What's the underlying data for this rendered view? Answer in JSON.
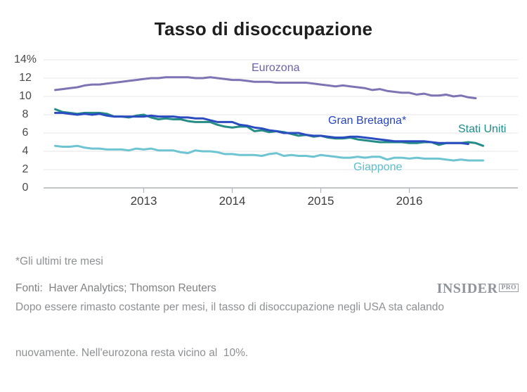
{
  "title": "Tasso di disoccupazione",
  "chart_data": {
    "type": "line",
    "title": "Tasso di disoccupazione",
    "x_unit": "month",
    "x_start": "2012-01",
    "grid": true,
    "legend": "inline-labels",
    "ylim": [
      0,
      14
    ],
    "y_ticks": [
      {
        "label": "14%",
        "value": 14
      },
      {
        "label": "12",
        "value": 12
      },
      {
        "label": "10",
        "value": 10
      },
      {
        "label": "8",
        "value": 8
      },
      {
        "label": "6",
        "value": 6
      },
      {
        "label": "4",
        "value": 4
      },
      {
        "label": "2",
        "value": 2
      },
      {
        "label": "0",
        "value": 0
      }
    ],
    "x_ticks": [
      {
        "label": "2013",
        "month_index": 12
      },
      {
        "label": "2014",
        "month_index": 24
      },
      {
        "label": "2015",
        "month_index": 36
      },
      {
        "label": "2016",
        "month_index": 48
      }
    ],
    "series": [
      {
        "name": "Eurozona",
        "color": "#7e73b3",
        "label_color": "#6c61aa",
        "values": [
          10.7,
          10.8,
          10.9,
          11.0,
          11.2,
          11.3,
          11.3,
          11.4,
          11.5,
          11.6,
          11.7,
          11.8,
          11.9,
          12.0,
          12.0,
          12.1,
          12.1,
          12.1,
          12.1,
          12.0,
          12.0,
          12.1,
          12.0,
          11.9,
          11.8,
          11.8,
          11.7,
          11.6,
          11.6,
          11.6,
          11.5,
          11.5,
          11.5,
          11.5,
          11.5,
          11.4,
          11.3,
          11.2,
          11.1,
          11.2,
          11.1,
          11.0,
          10.9,
          10.7,
          10.8,
          10.6,
          10.5,
          10.4,
          10.4,
          10.2,
          10.3,
          10.1,
          10.1,
          10.2,
          10.0,
          10.1,
          9.9,
          9.8
        ]
      },
      {
        "name": "Stati Uniti",
        "color": "#268c86",
        "label_color": "#1f8c8a",
        "values": [
          8.6,
          8.3,
          8.2,
          8.1,
          8.2,
          8.2,
          8.2,
          8.1,
          7.8,
          7.8,
          7.7,
          7.9,
          8.0,
          7.7,
          7.5,
          7.6,
          7.5,
          7.5,
          7.3,
          7.2,
          7.2,
          7.2,
          6.9,
          6.7,
          6.6,
          6.7,
          6.7,
          6.2,
          6.3,
          6.1,
          6.2,
          6.1,
          5.9,
          5.7,
          5.8,
          5.6,
          5.7,
          5.5,
          5.4,
          5.4,
          5.5,
          5.3,
          5.2,
          5.1,
          5.0,
          5.0,
          5.0,
          5.0,
          4.9,
          4.9,
          5.0,
          5.0,
          4.7,
          4.9,
          4.9,
          4.9,
          5.0,
          4.9,
          4.6
        ]
      },
      {
        "name": "Gran Bretagna*",
        "color": "#2b4cc0",
        "label_color": "#2545c5",
        "values": [
          8.2,
          8.2,
          8.1,
          8.0,
          8.1,
          8.0,
          8.1,
          7.9,
          7.8,
          7.8,
          7.8,
          7.8,
          7.8,
          7.9,
          7.8,
          7.8,
          7.8,
          7.7,
          7.7,
          7.6,
          7.6,
          7.4,
          7.2,
          7.2,
          7.2,
          6.9,
          6.8,
          6.6,
          6.5,
          6.3,
          6.2,
          6.0,
          6.0,
          6.0,
          5.8,
          5.7,
          5.7,
          5.6,
          5.5,
          5.5,
          5.6,
          5.6,
          5.5,
          5.4,
          5.3,
          5.2,
          5.1,
          5.1,
          5.1,
          5.1,
          5.1,
          5.0,
          4.9,
          4.9,
          4.9,
          4.9,
          4.8
        ]
      },
      {
        "name": "Giappone",
        "color": "#6fc4d2",
        "label_color": "#5cbecd",
        "values": [
          4.6,
          4.5,
          4.5,
          4.6,
          4.4,
          4.3,
          4.3,
          4.2,
          4.2,
          4.2,
          4.1,
          4.3,
          4.2,
          4.3,
          4.1,
          4.1,
          4.1,
          3.9,
          3.8,
          4.1,
          4.0,
          4.0,
          3.9,
          3.7,
          3.7,
          3.6,
          3.6,
          3.6,
          3.5,
          3.7,
          3.8,
          3.5,
          3.6,
          3.5,
          3.5,
          3.4,
          3.6,
          3.5,
          3.4,
          3.3,
          3.3,
          3.4,
          3.3,
          3.4,
          3.4,
          3.1,
          3.3,
          3.3,
          3.2,
          3.3,
          3.2,
          3.2,
          3.2,
          3.1,
          3.0,
          3.1,
          3.0,
          3.0,
          3.0
        ]
      }
    ]
  },
  "notes": {
    "line1": "*Gli ultimi tre mesi",
    "line2": "Dopo essere rimasto costante per mesi, il tasso di disoccupazione negli USA sta calando",
    "line3": "nuovamente. Nell'eurozona resta vicino al  10%."
  },
  "source": "Fonti:  Haver Analytics; Thomson Reuters",
  "logo": {
    "name": "INSIDER",
    "badge": "PRO"
  }
}
